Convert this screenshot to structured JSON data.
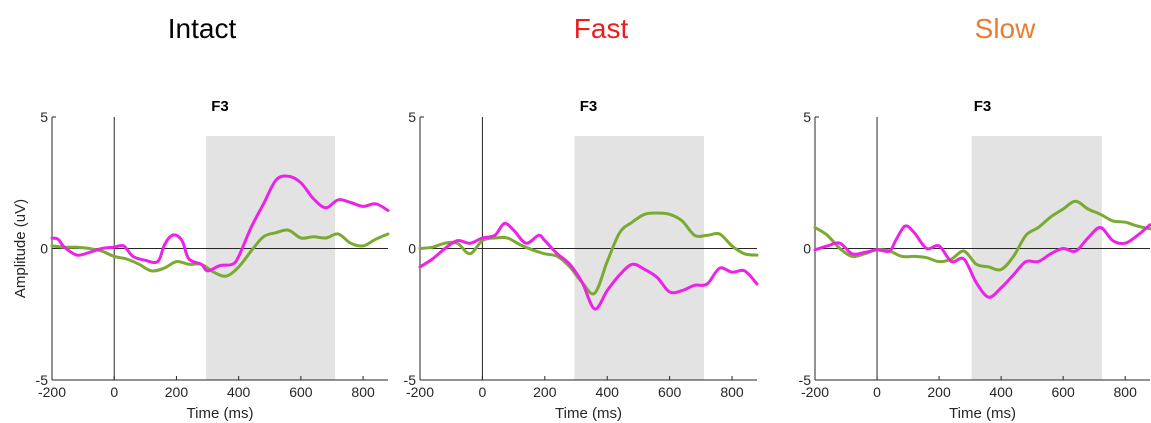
{
  "colors": {
    "green": "#7aaa32",
    "magenta": "#ec22e6",
    "shade": "#e3e3e3",
    "axis": "#262626"
  },
  "chart_data": [
    {
      "type": "line",
      "condition_title": "Intact",
      "condition_color": "#000000",
      "title": "F3",
      "xlabel": "Time (ms)",
      "ylabel": "Amplitude (uV)",
      "xlim": [
        -200,
        880
      ],
      "ylim": [
        -5,
        5
      ],
      "xticks": [
        -200,
        0,
        200,
        400,
        600,
        800
      ],
      "yticks": [
        -5,
        0,
        5
      ],
      "shaded_window": [
        295,
        710
      ],
      "series": [
        {
          "color": "#7aaa32",
          "x": [
            -200,
            -160,
            -120,
            -80,
            -40,
            0,
            40,
            80,
            120,
            160,
            200,
            240,
            280,
            320,
            360,
            400,
            440,
            480,
            520,
            560,
            600,
            640,
            680,
            720,
            760,
            800,
            840,
            880
          ],
          "y": [
            0.1,
            0.05,
            0.05,
            0.0,
            -0.1,
            -0.3,
            -0.4,
            -0.6,
            -0.85,
            -0.75,
            -0.5,
            -0.6,
            -0.6,
            -0.9,
            -1.05,
            -0.7,
            -0.1,
            0.45,
            0.6,
            0.7,
            0.4,
            0.45,
            0.4,
            0.55,
            0.2,
            0.1,
            0.35,
            0.55
          ]
        },
        {
          "color": "#ec22e6",
          "x": [
            -200,
            -180,
            -160,
            -120,
            -80,
            -40,
            0,
            30,
            60,
            100,
            140,
            160,
            180,
            200,
            220,
            240,
            280,
            300,
            340,
            380,
            400,
            440,
            480,
            520,
            560,
            600,
            640,
            680,
            720,
            760,
            800,
            840,
            880
          ],
          "y": [
            0.4,
            0.35,
            0.05,
            -0.25,
            -0.15,
            0.0,
            0.05,
            0.1,
            -0.3,
            -0.45,
            -0.5,
            0.1,
            0.45,
            0.5,
            0.25,
            -0.4,
            -0.6,
            -0.85,
            -0.65,
            -0.6,
            -0.3,
            0.8,
            1.7,
            2.6,
            2.75,
            2.5,
            1.9,
            1.55,
            1.85,
            1.75,
            1.6,
            1.7,
            1.45
          ]
        }
      ]
    },
    {
      "type": "line",
      "condition_title": "Fast",
      "condition_color": "#ee1c1c",
      "title": "F3",
      "xlabel": "Time (ms)",
      "ylabel": "",
      "xlim": [
        -200,
        880
      ],
      "ylim": [
        -5,
        5
      ],
      "xticks": [
        -200,
        0,
        200,
        400,
        600,
        800
      ],
      "yticks": [
        -5,
        0,
        5
      ],
      "shaded_window": [
        295,
        710
      ],
      "series": [
        {
          "color": "#7aaa32",
          "x": [
            -200,
            -160,
            -120,
            -80,
            -40,
            0,
            40,
            80,
            120,
            160,
            200,
            240,
            280,
            320,
            360,
            400,
            440,
            480,
            520,
            560,
            600,
            640,
            680,
            720,
            760,
            800,
            840,
            880
          ],
          "y": [
            0.0,
            0.05,
            0.2,
            0.2,
            -0.2,
            0.3,
            0.4,
            0.4,
            0.15,
            -0.05,
            -0.2,
            -0.3,
            -0.7,
            -1.3,
            -1.7,
            -0.5,
            0.6,
            1.0,
            1.3,
            1.35,
            1.3,
            1.05,
            0.5,
            0.5,
            0.55,
            0.1,
            -0.2,
            -0.25
          ]
        },
        {
          "color": "#ec22e6",
          "x": [
            -200,
            -160,
            -120,
            -80,
            -40,
            0,
            40,
            70,
            100,
            140,
            180,
            200,
            240,
            280,
            320,
            360,
            400,
            440,
            480,
            520,
            560,
            600,
            640,
            680,
            720,
            760,
            800,
            840,
            880
          ],
          "y": [
            -0.7,
            -0.4,
            0.0,
            0.3,
            0.2,
            0.4,
            0.5,
            0.95,
            0.7,
            0.2,
            0.5,
            0.3,
            -0.2,
            -0.6,
            -1.3,
            -2.3,
            -1.6,
            -1.0,
            -0.6,
            -0.8,
            -1.1,
            -1.65,
            -1.6,
            -1.4,
            -1.35,
            -0.75,
            -0.9,
            -0.85,
            -1.35
          ]
        }
      ]
    },
    {
      "type": "line",
      "condition_title": "Slow",
      "condition_color": "#ee7b30",
      "title": "F3",
      "xlabel": "Time (ms)",
      "ylabel": "",
      "xlim": [
        -200,
        880
      ],
      "ylim": [
        -5,
        5
      ],
      "xticks": [
        -200,
        0,
        200,
        400,
        600,
        800
      ],
      "yticks": [
        -5,
        0,
        5
      ],
      "shaded_window": [
        305,
        725
      ],
      "series": [
        {
          "color": "#7aaa32",
          "x": [
            -200,
            -160,
            -120,
            -80,
            -40,
            0,
            40,
            80,
            120,
            160,
            200,
            240,
            280,
            320,
            360,
            400,
            440,
            480,
            520,
            560,
            600,
            640,
            680,
            720,
            760,
            800,
            840,
            880
          ],
          "y": [
            0.8,
            0.5,
            0.0,
            -0.3,
            -0.2,
            -0.05,
            -0.1,
            -0.3,
            -0.3,
            -0.35,
            -0.5,
            -0.4,
            -0.1,
            -0.6,
            -0.7,
            -0.8,
            -0.3,
            0.5,
            0.8,
            1.2,
            1.5,
            1.8,
            1.5,
            1.3,
            1.05,
            1.0,
            0.85,
            0.75
          ]
        },
        {
          "color": "#ec22e6",
          "x": [
            -200,
            -160,
            -120,
            -80,
            -40,
            0,
            40,
            60,
            90,
            120,
            160,
            200,
            240,
            280,
            320,
            360,
            400,
            440,
            480,
            520,
            560,
            600,
            640,
            680,
            720,
            760,
            800,
            840,
            880
          ],
          "y": [
            -0.05,
            0.1,
            0.2,
            -0.2,
            -0.15,
            -0.05,
            -0.1,
            0.3,
            0.85,
            0.6,
            0.0,
            0.1,
            -0.5,
            -0.4,
            -1.3,
            -1.85,
            -1.5,
            -1.0,
            -0.5,
            -0.5,
            -0.2,
            0.0,
            -0.1,
            0.4,
            0.8,
            0.3,
            0.2,
            0.5,
            0.9
          ]
        }
      ]
    }
  ]
}
